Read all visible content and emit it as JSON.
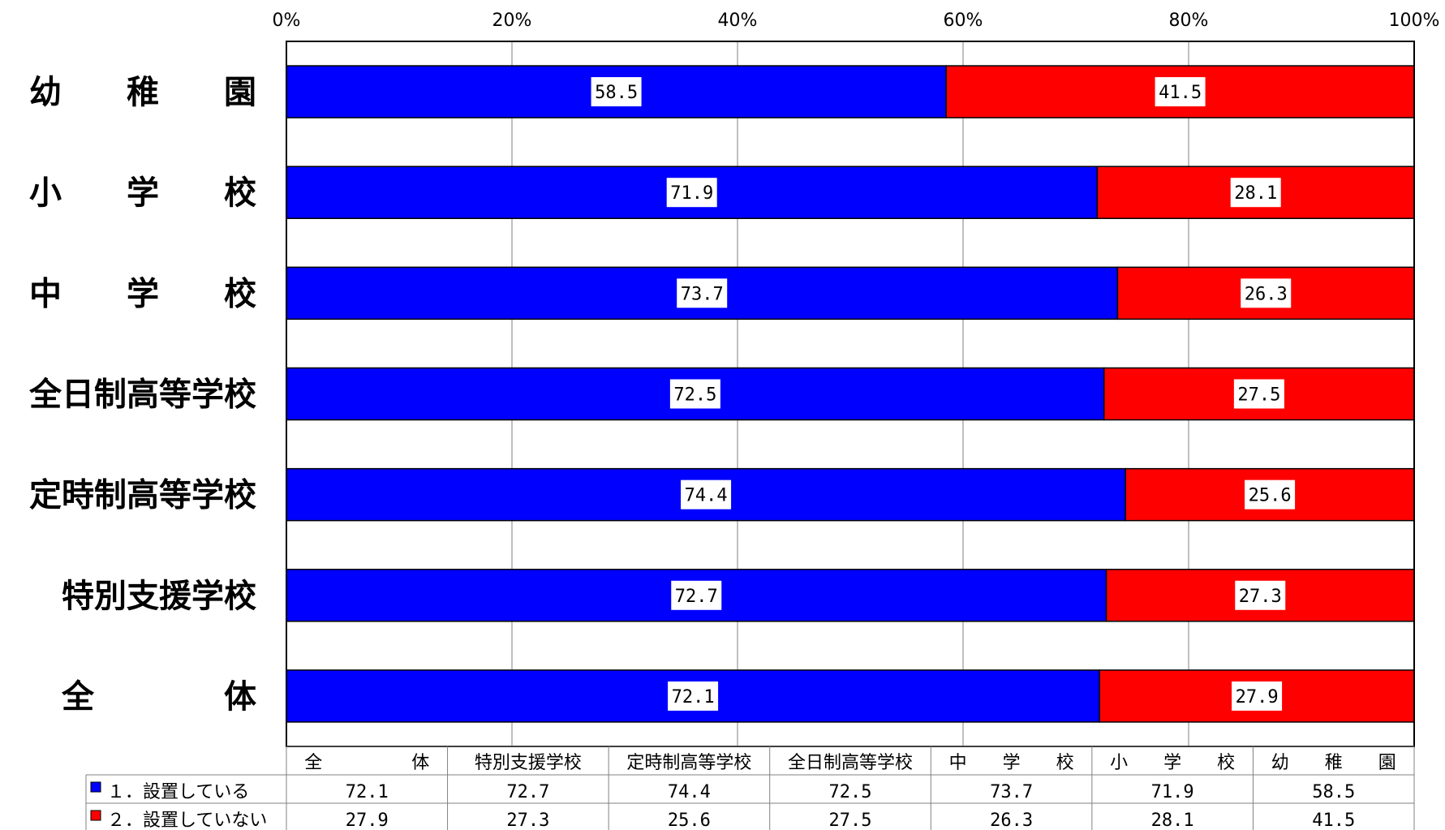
{
  "chart_data": {
    "type": "bar",
    "orientation": "horizontal",
    "stacked": true,
    "percent_stacked": true,
    "categories": [
      "幼　　稚　　園",
      "小　　学　　校",
      "中　　学　　校",
      "全日制高等学校",
      "定時制高等学校",
      "特別支援学校",
      "全　　　　体"
    ],
    "table_headers": [
      "全　　　　　体",
      "特別支援学校",
      "定時制高等学校",
      "全日制高等学校",
      "中　　学　　校",
      "小　　学　　校",
      "幼　　稚　　園"
    ],
    "series": [
      {
        "name": "■１．設置している",
        "color": "#0000ff",
        "values": [
          58.5,
          71.9,
          73.7,
          72.5,
          74.4,
          72.7,
          72.1
        ],
        "value_labels": [
          "58.5",
          "71.9",
          "73.7",
          "72.5",
          "74.4",
          "72.7",
          "72.1"
        ]
      },
      {
        "name": "■２．設置していない",
        "color": "#ff0000",
        "values": [
          41.5,
          28.1,
          26.3,
          27.5,
          25.6,
          27.3,
          27.9
        ],
        "value_labels": [
          "41.5",
          "28.1",
          "26.3",
          "27.5",
          "25.6",
          "27.3",
          "27.9"
        ]
      }
    ],
    "x_ticks": [
      "0%",
      "20%",
      "40%",
      "60%",
      "80%",
      "100%"
    ],
    "xlim": [
      0,
      100
    ],
    "grid": true,
    "legend": "data-table-bottom",
    "title": "",
    "xlabel": "",
    "ylabel": ""
  }
}
